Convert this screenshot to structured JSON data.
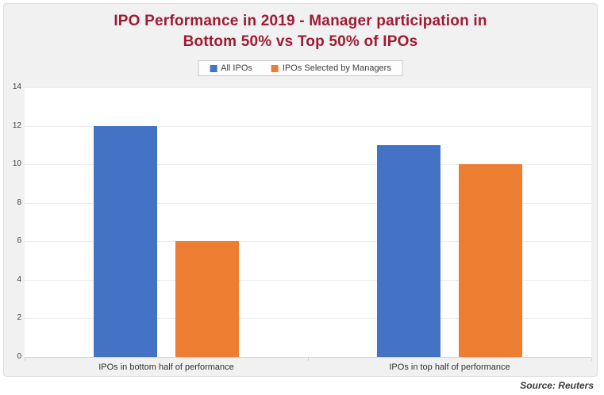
{
  "title": {
    "line1": "IPO Performance in 2019 - Manager participation in",
    "line2": "Bottom 50% vs Top 50% of IPOs",
    "color": "#9e1b32"
  },
  "chart_data": {
    "type": "bar",
    "title": "IPO Performance in 2019 - Manager participation in Bottom 50% vs Top 50% of IPOs",
    "categories": [
      "IPOs in bottom half of performance",
      "IPOs in top half of performance"
    ],
    "series": [
      {
        "name": "All IPOs",
        "color": "#4472c4",
        "values": [
          12,
          11
        ]
      },
      {
        "name": "IPOs Selected by Managers",
        "color": "#ed7d31",
        "values": [
          6,
          10
        ]
      }
    ],
    "xlabel": "",
    "ylabel": "",
    "ylim": [
      0,
      14
    ],
    "yticks": [
      0,
      2,
      4,
      6,
      8,
      10,
      12,
      14
    ],
    "grid": true,
    "legend_position": "top-center"
  },
  "source": "Source: Reuters"
}
